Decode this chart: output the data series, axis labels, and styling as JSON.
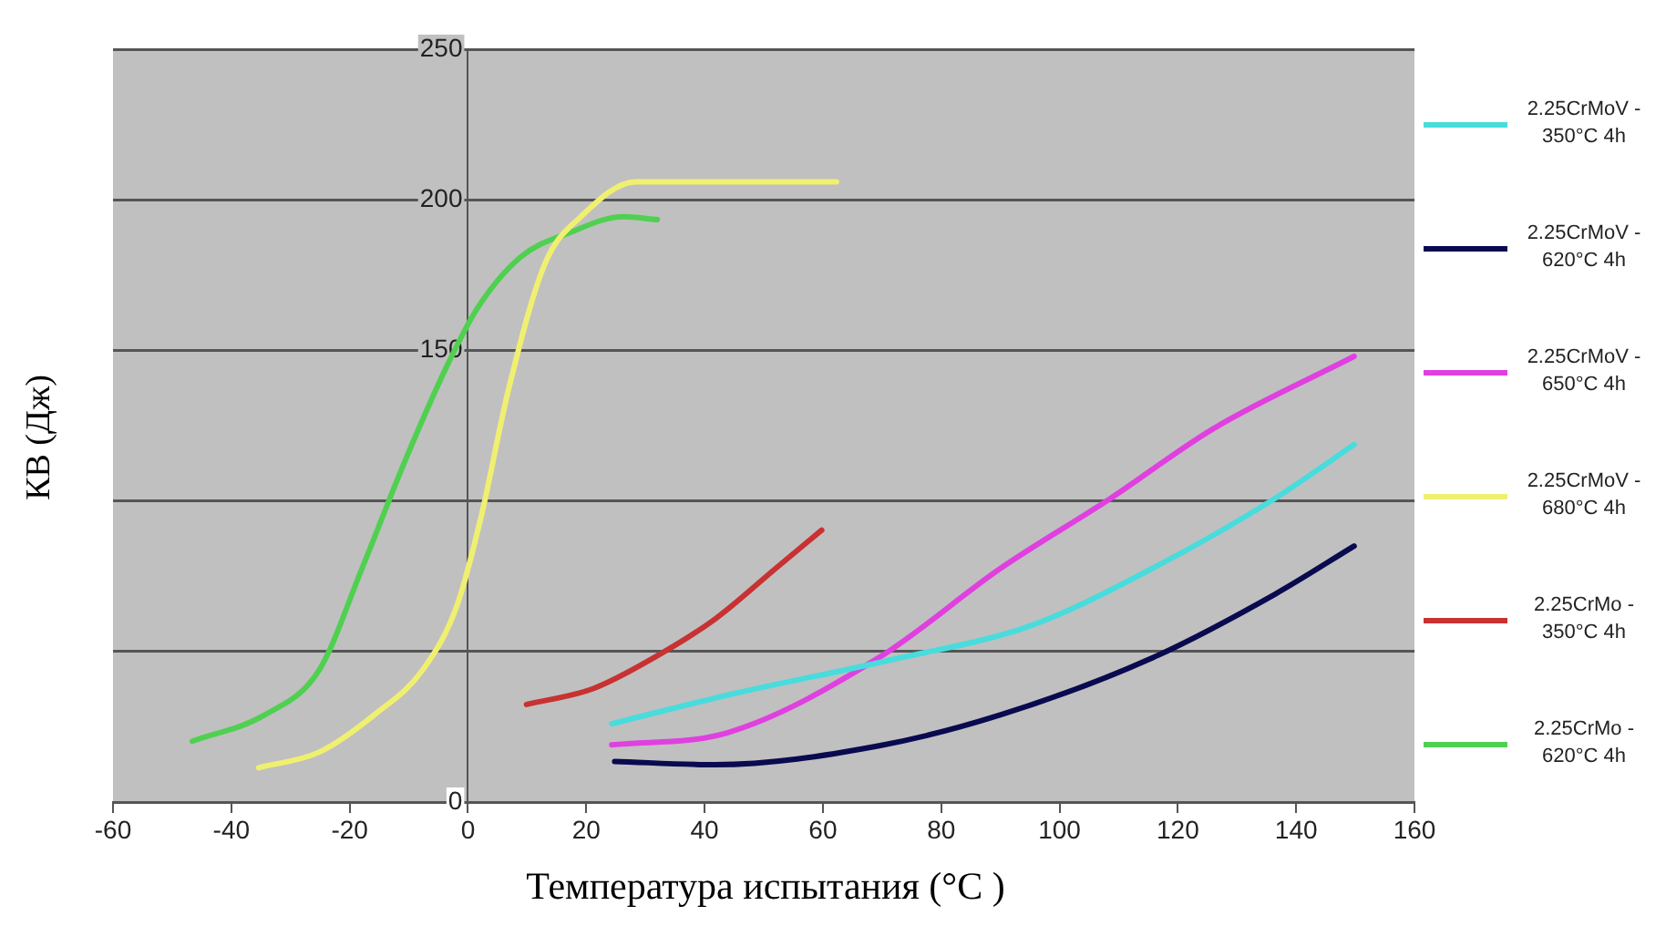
{
  "chart_data": {
    "type": "line",
    "xlabel": "Температура испытания (°C )",
    "ylabel": "КВ (Дж)",
    "xlim": [
      -60,
      160
    ],
    "xticks": [
      -60,
      -40,
      -20,
      0,
      20,
      40,
      60,
      80,
      100,
      120,
      140,
      160
    ],
    "ylim": [
      0,
      250
    ],
    "yticks": [
      0,
      {
        "value": 50,
        "label": null
      },
      {
        "value": 100,
        "label": null
      },
      150,
      200,
      250
    ],
    "grid": "y",
    "legend": "right",
    "marker": "none",
    "line_style": "solid",
    "series": [
      {
        "name": "2.25CrMoV - 350°C 4h",
        "color": "#48dcdc",
        "x": [
          24.3,
          43.8,
          71,
          95.3,
          115.8,
          136.4,
          149.8
        ],
        "values": [
          26,
          35.5,
          47,
          58.7,
          77.7,
          100.8,
          118.7
        ]
      },
      {
        "name": "2.25CrMoV - 620°C 4h",
        "color": "#0a0a50",
        "x": [
          24.8,
          41.8,
          69.5,
          90.1,
          115.8,
          136.4,
          149.8
        ],
        "values": [
          13.5,
          12.4,
          18.7,
          29,
          48,
          69,
          85
        ]
      },
      {
        "name": "2.25CrMoV - 650°C 4h",
        "color": "#e040e0",
        "x": [
          24.3,
          43.8,
          69.5,
          90.1,
          108.6,
          126,
          149.8
        ],
        "values": [
          19,
          23,
          48,
          77.7,
          100.8,
          124,
          148
        ]
      },
      {
        "name": "2.25CrMoV - 680°C 4h",
        "color": "#f0f070",
        "x": [
          -35.4,
          -25.1,
          -15.8,
          -7.6,
          -1.9,
          2.2,
          6.8,
          13,
          19.1,
          28.4,
          62.3
        ],
        "values": [
          11.4,
          16.6,
          29,
          44,
          65,
          94.5,
          136.5,
          178.7,
          194.4,
          206,
          206
        ]
      },
      {
        "name": "2.25CrMo - 350°C 4h",
        "color": "#c83232",
        "x": [
          9.9,
          21.2,
          31.5,
          41.8,
          52.1,
          59.8
        ],
        "values": [
          32.4,
          37.7,
          48,
          60.8,
          77.7,
          90.3
        ]
      },
      {
        "name": "2.25CrMo - 620°C 4h",
        "color": "#50d050",
        "x": [
          -46.6,
          -34.3,
          -25.1,
          -17.9,
          -10.7,
          -3.5,
          1.6,
          8.9,
          17.1,
          26.3,
          32
        ],
        "values": [
          20.2,
          29,
          44,
          77.6,
          113,
          145,
          164,
          181,
          189,
          194.4,
          193.4
        ]
      }
    ]
  }
}
